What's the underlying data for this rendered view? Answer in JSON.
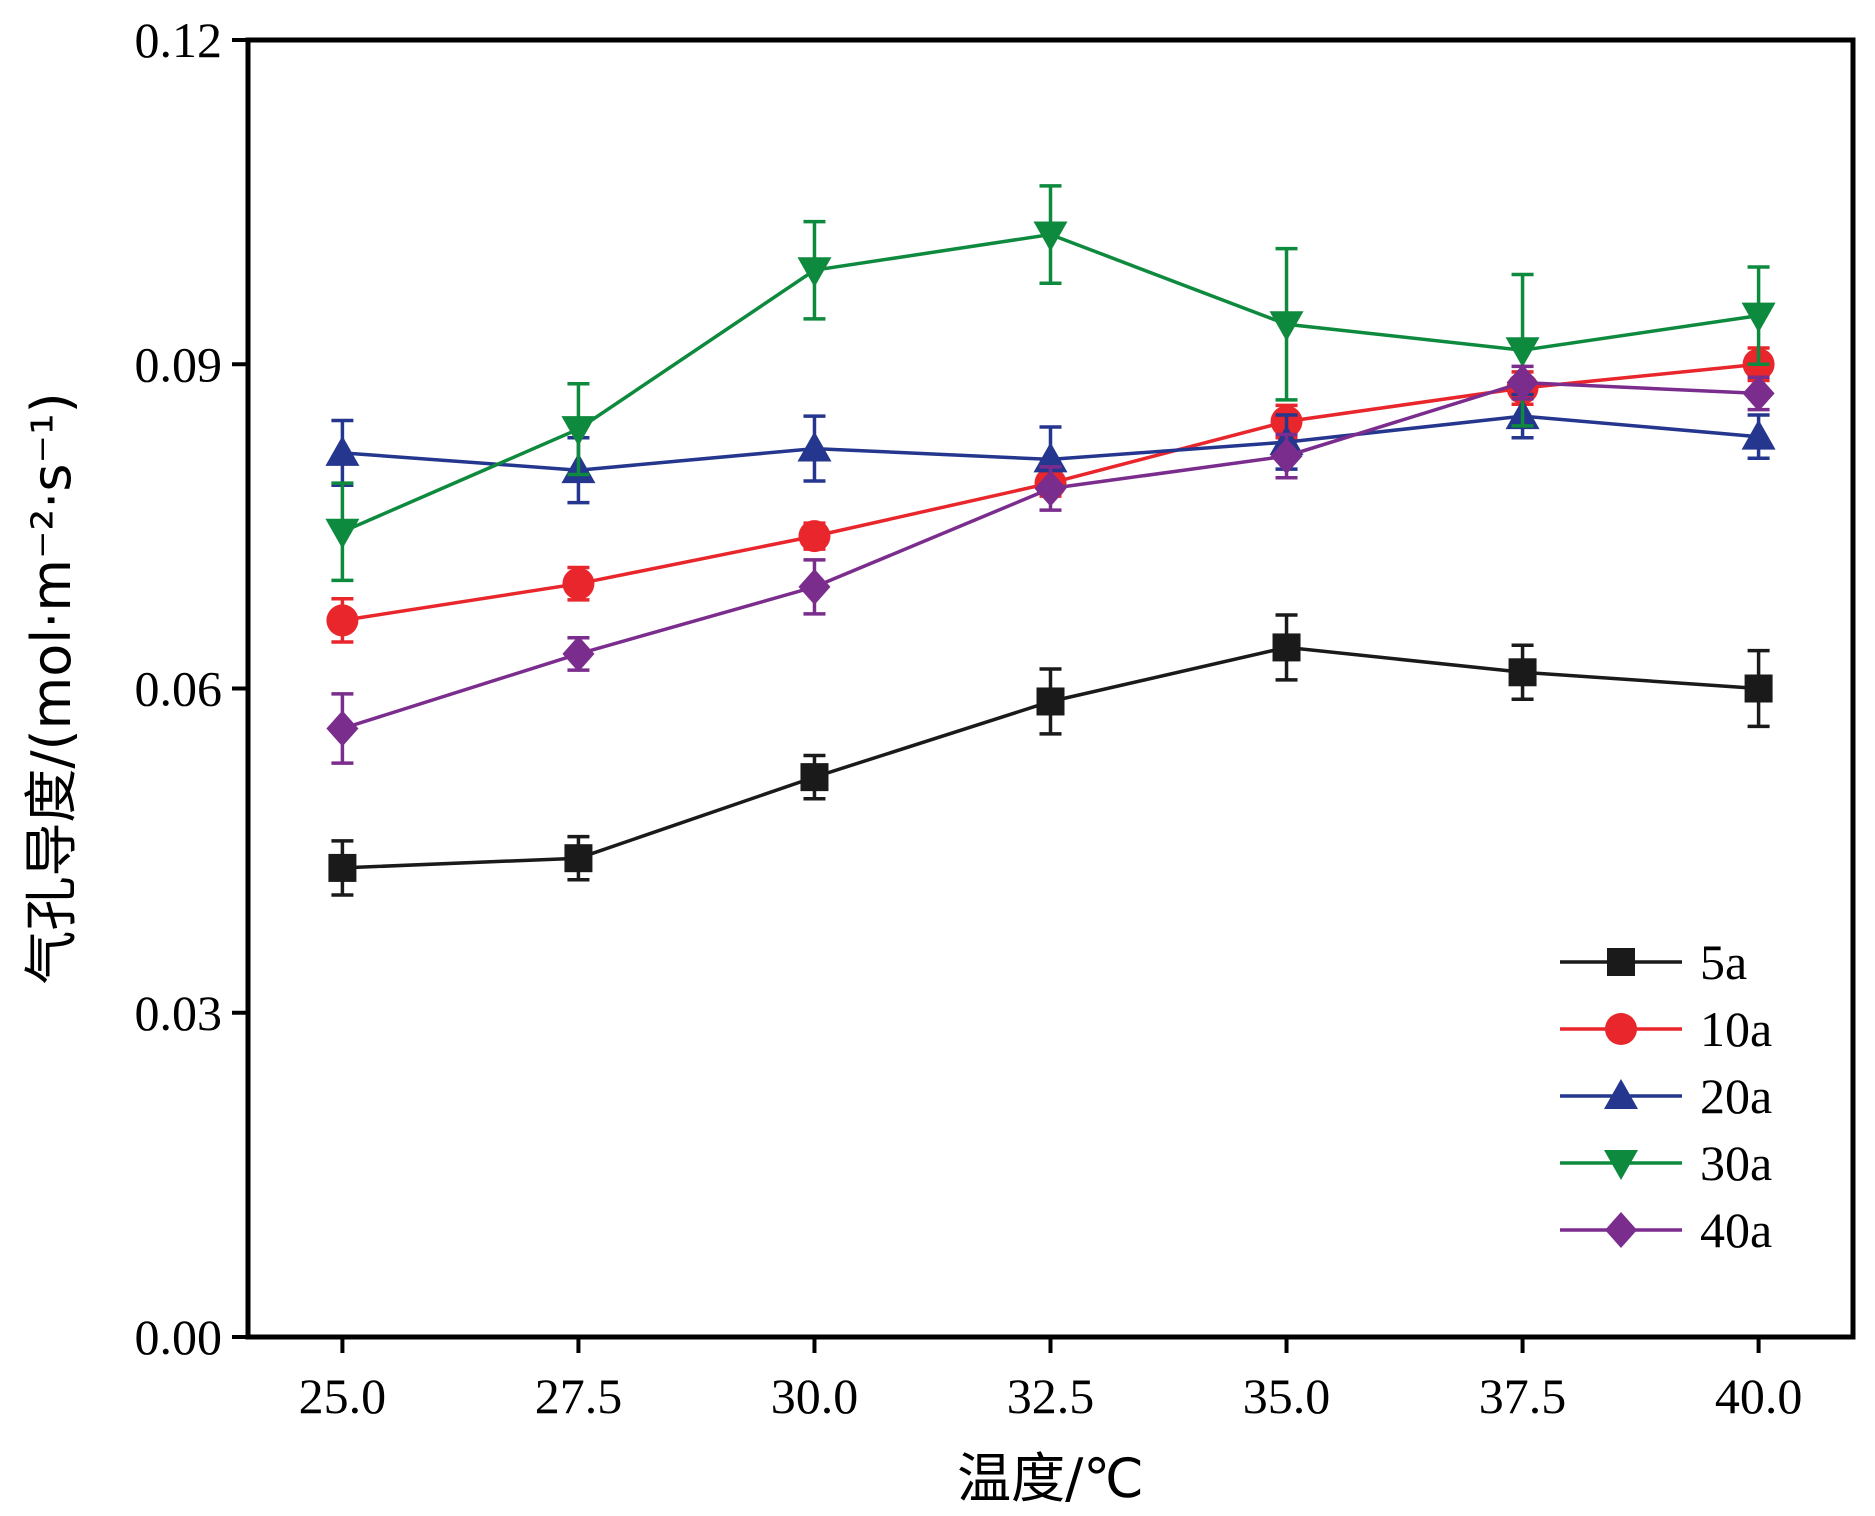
{
  "chart_data": {
    "type": "line",
    "title": "",
    "xlabel": "温度/℃",
    "ylabel": "气孔导度/(mol·m⁻²·s⁻¹)",
    "x": [
      25.0,
      27.5,
      30.0,
      32.5,
      35.0,
      37.5,
      40.0
    ],
    "x_tick_labels": [
      "25.0",
      "27.5",
      "30.0",
      "32.5",
      "35.0",
      "37.5",
      "40.0"
    ],
    "y_tick_labels": [
      "0.00",
      "0.03",
      "0.06",
      "0.09",
      "0.12"
    ],
    "y_ticks": [
      0.0,
      0.03,
      0.06,
      0.09,
      0.12
    ],
    "xlim": [
      24.0,
      41.0
    ],
    "ylim": [
      0.0,
      0.12
    ],
    "grid": false,
    "legend_position": "bottom-right",
    "series": [
      {
        "name": "5a",
        "color": "#1a1a1a",
        "marker": "square",
        "values": [
          0.0434,
          0.0443,
          0.0518,
          0.0588,
          0.0638,
          0.0615,
          0.06
        ],
        "errors": [
          0.0025,
          0.002,
          0.002,
          0.003,
          0.003,
          0.0025,
          0.0035
        ]
      },
      {
        "name": "10a",
        "color": "#e8262b",
        "marker": "circle",
        "values": [
          0.0663,
          0.0697,
          0.0741,
          0.079,
          0.0847,
          0.0878,
          0.09
        ],
        "errors": [
          0.002,
          0.0015,
          0.0012,
          0.0012,
          0.0015,
          0.0015,
          0.0015
        ]
      },
      {
        "name": "20a",
        "color": "#25368e",
        "marker": "triangle-up",
        "values": [
          0.0818,
          0.0802,
          0.0822,
          0.0812,
          0.0828,
          0.0852,
          0.0833
        ],
        "errors": [
          0.003,
          0.003,
          0.003,
          0.003,
          0.0025,
          0.002,
          0.002
        ]
      },
      {
        "name": "30a",
        "color": "#0e8a3e",
        "marker": "triangle-down",
        "values": [
          0.0745,
          0.084,
          0.0987,
          0.102,
          0.0937,
          0.0913,
          0.0945
        ],
        "errors": [
          0.0045,
          0.0042,
          0.0045,
          0.0045,
          0.007,
          0.007,
          0.0045
        ]
      },
      {
        "name": "40a",
        "color": "#7b2d8e",
        "marker": "diamond",
        "values": [
          0.0563,
          0.0632,
          0.0694,
          0.0785,
          0.0815,
          0.0883,
          0.0873
        ],
        "errors": [
          0.0032,
          0.0015,
          0.0025,
          0.002,
          0.002,
          0.0015,
          0.0015
        ]
      }
    ]
  }
}
